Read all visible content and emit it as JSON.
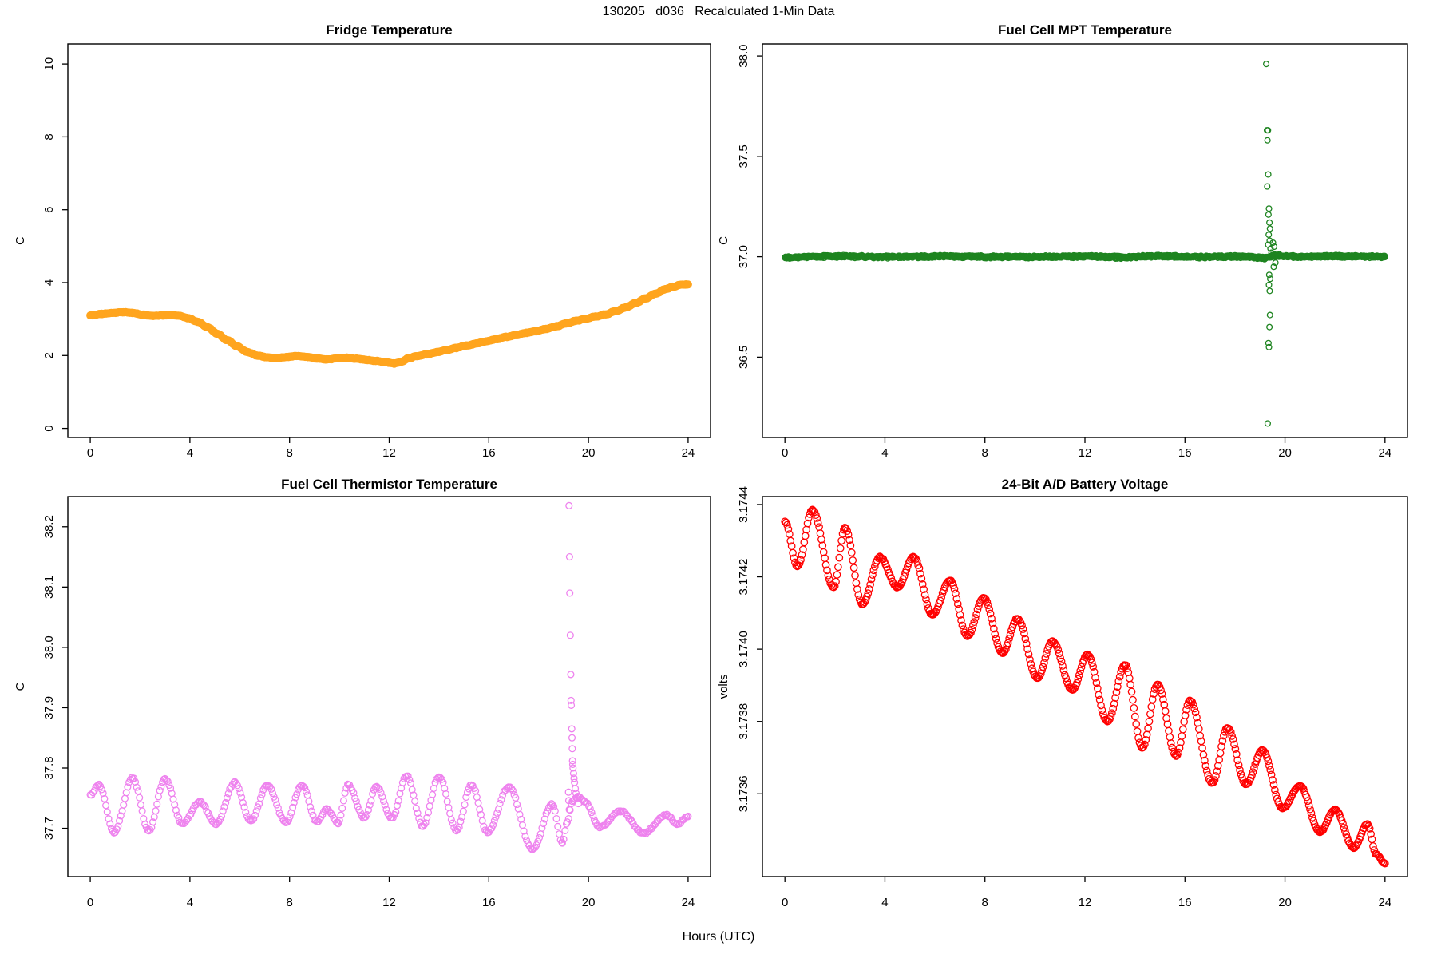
{
  "main_title": "130205   d036   Recalculated 1-Min Data",
  "outer_xlabel": "Hours (UTC)",
  "chart_data": [
    {
      "id": "fridge-temperature",
      "type": "scatter",
      "title": "Fridge Temperature",
      "xlabel": "Hours (UTC)",
      "ylabel": "C",
      "color": "#FFA51E",
      "marker": "filled-circle",
      "marker_radius": 5,
      "legend": "none",
      "grid": false,
      "xlim": [
        -0.9,
        24.9
      ],
      "ylim": [
        -0.25,
        10.55
      ],
      "xtick_vals": [
        0,
        4,
        8,
        12,
        16,
        20,
        24
      ],
      "xtick_labels": [
        "0",
        "4",
        "8",
        "12",
        "16",
        "20",
        "24"
      ],
      "ytick_vals": [
        0,
        2,
        4,
        6,
        8,
        10
      ],
      "ytick_labels": [
        "0",
        "2",
        "4",
        "6",
        "8",
        "10"
      ],
      "sample_step_hours": 0.03,
      "noise_amplitude": 0.012,
      "seed": 11,
      "keypoints": [
        [
          0,
          3.1
        ],
        [
          0.4,
          3.14
        ],
        [
          0.9,
          3.17
        ],
        [
          1.3,
          3.19
        ],
        [
          1.7,
          3.17
        ],
        [
          2.1,
          3.12
        ],
        [
          2.5,
          3.09
        ],
        [
          2.9,
          3.1
        ],
        [
          3.3,
          3.11
        ],
        [
          3.6,
          3.09
        ],
        [
          3.9,
          3.03
        ],
        [
          4.3,
          2.93
        ],
        [
          4.7,
          2.78
        ],
        [
          5.1,
          2.6
        ],
        [
          5.5,
          2.42
        ],
        [
          5.9,
          2.25
        ],
        [
          6.3,
          2.1
        ],
        [
          6.7,
          2.0
        ],
        [
          7.1,
          1.95
        ],
        [
          7.5,
          1.93
        ],
        [
          7.9,
          1.96
        ],
        [
          8.3,
          1.99
        ],
        [
          8.7,
          1.96
        ],
        [
          9.1,
          1.92
        ],
        [
          9.5,
          1.89
        ],
        [
          9.9,
          1.92
        ],
        [
          10.3,
          1.94
        ],
        [
          10.7,
          1.91
        ],
        [
          11.1,
          1.88
        ],
        [
          11.5,
          1.85
        ],
        [
          11.9,
          1.81
        ],
        [
          12.2,
          1.78
        ],
        [
          12.5,
          1.83
        ],
        [
          12.8,
          1.93
        ],
        [
          13.1,
          1.98
        ],
        [
          13.5,
          2.03
        ],
        [
          13.9,
          2.09
        ],
        [
          14.3,
          2.15
        ],
        [
          14.7,
          2.21
        ],
        [
          15.1,
          2.27
        ],
        [
          15.5,
          2.33
        ],
        [
          15.9,
          2.39
        ],
        [
          16.3,
          2.45
        ],
        [
          16.7,
          2.51
        ],
        [
          17.1,
          2.56
        ],
        [
          17.5,
          2.62
        ],
        [
          17.9,
          2.67
        ],
        [
          18.3,
          2.73
        ],
        [
          18.7,
          2.8
        ],
        [
          19.1,
          2.88
        ],
        [
          19.5,
          2.95
        ],
        [
          19.9,
          3.01
        ],
        [
          20.3,
          3.07
        ],
        [
          20.7,
          3.13
        ],
        [
          21.1,
          3.22
        ],
        [
          21.5,
          3.32
        ],
        [
          21.9,
          3.44
        ],
        [
          22.3,
          3.57
        ],
        [
          22.7,
          3.7
        ],
        [
          23.1,
          3.82
        ],
        [
          23.4,
          3.89
        ],
        [
          23.7,
          3.94
        ],
        [
          24,
          3.95
        ]
      ],
      "outliers": []
    },
    {
      "id": "fuel-cell-mpt-temperature",
      "type": "scatter",
      "title": "Fuel Cell MPT Temperature",
      "xlabel": "Hours (UTC)",
      "ylabel": "C",
      "color": "#1E8420",
      "marker": "open-circle",
      "marker_radius": 3.4,
      "legend": "none",
      "grid": false,
      "xlim": [
        -0.9,
        24.9
      ],
      "ylim": [
        36.1,
        38.06
      ],
      "xtick_vals": [
        0,
        4,
        8,
        12,
        16,
        20,
        24
      ],
      "xtick_labels": [
        "0",
        "4",
        "8",
        "12",
        "16",
        "20",
        "24"
      ],
      "ytick_vals": [
        36.5,
        37.0,
        37.5,
        38.0
      ],
      "ytick_labels": [
        "36.5",
        "37.0",
        "37.5",
        "38.0"
      ],
      "sample_step_hours": 0.016,
      "noise_amplitude": 0.0075,
      "seed": 22,
      "keypoints": [
        [
          0,
          36.998
        ],
        [
          2,
          37.002
        ],
        [
          4,
          36.999
        ],
        [
          6,
          37.001
        ],
        [
          8,
          37.0
        ],
        [
          10,
          36.999
        ],
        [
          12,
          37.002
        ],
        [
          13.5,
          36.997
        ],
        [
          15,
          37.003
        ],
        [
          16.5,
          36.999
        ],
        [
          18,
          37.001
        ],
        [
          19.2,
          36.995
        ],
        [
          19.6,
          37.006
        ],
        [
          20.5,
          37.0
        ],
        [
          22,
          37.002
        ],
        [
          24,
          37.0
        ]
      ],
      "outliers": [
        [
          19.25,
          37.96
        ],
        [
          19.28,
          37.63
        ],
        [
          19.32,
          37.63
        ],
        [
          19.3,
          37.58
        ],
        [
          19.33,
          37.41
        ],
        [
          19.29,
          37.35
        ],
        [
          19.36,
          37.24
        ],
        [
          19.34,
          37.21
        ],
        [
          19.38,
          37.17
        ],
        [
          19.4,
          37.14
        ],
        [
          19.35,
          37.11
        ],
        [
          19.39,
          37.08
        ],
        [
          19.33,
          37.06
        ],
        [
          19.42,
          37.04
        ],
        [
          19.46,
          37.02
        ],
        [
          19.37,
          36.91
        ],
        [
          19.41,
          36.89
        ],
        [
          19.36,
          36.86
        ],
        [
          19.39,
          36.83
        ],
        [
          19.4,
          36.71
        ],
        [
          19.38,
          36.65
        ],
        [
          19.34,
          36.57
        ],
        [
          19.36,
          36.55
        ],
        [
          19.31,
          36.17
        ],
        [
          19.52,
          37.07
        ],
        [
          19.57,
          37.05
        ],
        [
          19.62,
          36.97
        ],
        [
          19.55,
          36.95
        ]
      ]
    },
    {
      "id": "fuel-cell-thermistor-temperature",
      "type": "scatter",
      "title": "Fuel Cell Thermistor Temperature",
      "xlabel": "Hours (UTC)",
      "ylabel": "C",
      "color": "#EE82EE",
      "marker": "open-circle",
      "marker_radius": 3.9,
      "legend": "none",
      "grid": false,
      "xlim": [
        -0.9,
        24.9
      ],
      "ylim": [
        37.62,
        38.25
      ],
      "xtick_vals": [
        0,
        4,
        8,
        12,
        16,
        20,
        24
      ],
      "xtick_labels": [
        "0",
        "4",
        "8",
        "12",
        "16",
        "20",
        "24"
      ],
      "ytick_vals": [
        37.7,
        37.8,
        37.9,
        38.0,
        38.1,
        38.2
      ],
      "ytick_labels": [
        "37.7",
        "37.8",
        "37.9",
        "38.0",
        "38.1",
        "38.2"
      ],
      "sample_step_hours": 0.055,
      "noise_amplitude": 0.002,
      "seed": 33,
      "keypoints": [
        [
          0,
          37.755
        ],
        [
          0.35,
          37.772
        ],
        [
          0.95,
          37.693
        ],
        [
          1.7,
          37.783
        ],
        [
          2.35,
          37.696
        ],
        [
          3.0,
          37.782
        ],
        [
          3.7,
          37.708
        ],
        [
          4.4,
          37.744
        ],
        [
          5.05,
          37.707
        ],
        [
          5.8,
          37.776
        ],
        [
          6.45,
          37.712
        ],
        [
          7.1,
          37.771
        ],
        [
          7.85,
          37.71
        ],
        [
          8.5,
          37.772
        ],
        [
          9.1,
          37.711
        ],
        [
          9.5,
          37.732
        ],
        [
          9.95,
          37.709
        ],
        [
          10.35,
          37.772
        ],
        [
          11.0,
          37.717
        ],
        [
          11.5,
          37.769
        ],
        [
          12.1,
          37.716
        ],
        [
          12.7,
          37.787
        ],
        [
          13.35,
          37.704
        ],
        [
          14.0,
          37.786
        ],
        [
          14.7,
          37.697
        ],
        [
          15.3,
          37.772
        ],
        [
          15.95,
          37.694
        ],
        [
          16.8,
          37.769
        ],
        [
          17.75,
          37.665
        ],
        [
          18.55,
          37.74
        ],
        [
          18.95,
          37.676
        ],
        [
          19.15,
          37.71
        ],
        [
          19.35,
          37.745
        ],
        [
          19.6,
          37.752
        ],
        [
          19.85,
          37.744
        ],
        [
          20.45,
          37.702
        ],
        [
          21.3,
          37.729
        ],
        [
          22.2,
          37.692
        ],
        [
          23.15,
          37.722
        ],
        [
          23.55,
          37.707
        ],
        [
          24,
          37.72
        ]
      ],
      "outliers": [
        [
          19.2,
          37.76
        ],
        [
          19.21,
          37.746
        ],
        [
          19.22,
          38.235
        ],
        [
          19.23,
          37.731
        ],
        [
          19.24,
          38.15
        ],
        [
          19.25,
          38.09
        ],
        [
          19.27,
          38.02
        ],
        [
          19.29,
          37.955
        ],
        [
          19.3,
          37.912
        ],
        [
          19.31,
          37.904
        ],
        [
          19.33,
          37.865
        ],
        [
          19.34,
          37.85
        ],
        [
          19.35,
          37.832
        ],
        [
          19.36,
          37.812
        ],
        [
          19.37,
          37.806
        ],
        [
          19.38,
          37.8
        ],
        [
          19.4,
          37.791
        ],
        [
          19.42,
          37.783
        ],
        [
          19.44,
          37.776
        ],
        [
          19.47,
          37.766
        ],
        [
          19.5,
          37.758
        ],
        [
          19.55,
          37.749
        ],
        [
          19.6,
          37.741
        ]
      ]
    },
    {
      "id": "battery-voltage",
      "type": "scatter",
      "title": "24-Bit A/D Battery Voltage",
      "xlabel": "Hours (UTC)",
      "ylabel": "volts",
      "color": "#FF0000",
      "marker": "open-circle",
      "marker_radius": 4.2,
      "legend": "none",
      "grid": false,
      "xlim": [
        -0.9,
        24.9
      ],
      "ylim": [
        3.173371,
        3.174422
      ],
      "xtick_vals": [
        0,
        4,
        8,
        12,
        16,
        20,
        24
      ],
      "xtick_labels": [
        "0",
        "4",
        "8",
        "12",
        "16",
        "20",
        "24"
      ],
      "ytick_vals": [
        3.1736,
        3.1738,
        3.174,
        3.1742,
        3.1744
      ],
      "ytick_labels": [
        "3.1736",
        "3.1738",
        "3.1740",
        "3.1742",
        "3.1744"
      ],
      "sample_step_hours": 0.045,
      "noise_amplitude": 1.8e-06,
      "seed": 44,
      "keypoints": [
        [
          0,
          3.174353
        ],
        [
          0.5,
          3.174229
        ],
        [
          1.1,
          3.174385
        ],
        [
          1.95,
          3.174171
        ],
        [
          2.4,
          3.174335
        ],
        [
          3.1,
          3.174124
        ],
        [
          3.8,
          3.174255
        ],
        [
          4.5,
          3.174171
        ],
        [
          5.15,
          3.174255
        ],
        [
          5.9,
          3.174095
        ],
        [
          6.6,
          3.17419
        ],
        [
          7.3,
          3.174036
        ],
        [
          7.95,
          3.174142
        ],
        [
          8.7,
          3.173989
        ],
        [
          9.3,
          3.174084
        ],
        [
          10.1,
          3.17392
        ],
        [
          10.7,
          3.174022
        ],
        [
          11.5,
          3.173887
        ],
        [
          12.1,
          3.173985
        ],
        [
          12.9,
          3.1738
        ],
        [
          13.6,
          3.173956
        ],
        [
          14.3,
          3.173727
        ],
        [
          14.9,
          3.173902
        ],
        [
          15.65,
          3.173705
        ],
        [
          16.2,
          3.173858
        ],
        [
          17.1,
          3.17363
        ],
        [
          17.7,
          3.173782
        ],
        [
          18.45,
          3.173626
        ],
        [
          19.1,
          3.17372
        ],
        [
          19.9,
          3.17356
        ],
        [
          20.6,
          3.173622
        ],
        [
          21.4,
          3.173494
        ],
        [
          22.0,
          3.173556
        ],
        [
          22.75,
          3.173451
        ],
        [
          23.3,
          3.173516
        ],
        [
          23.65,
          3.173433
        ],
        [
          24,
          3.173407
        ]
      ],
      "outliers": []
    }
  ]
}
